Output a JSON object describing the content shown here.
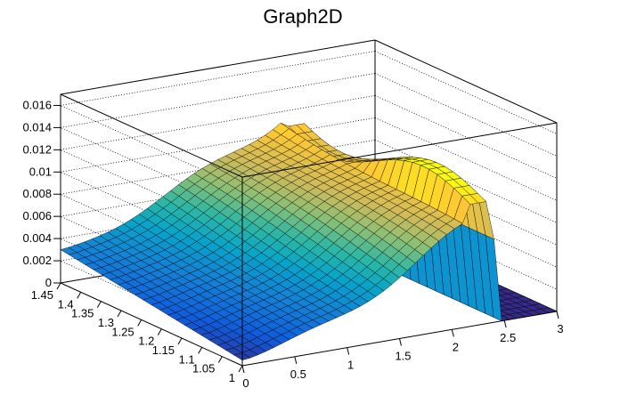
{
  "chart_data": {
    "type": "surface",
    "title": "Graph2D",
    "x_axis": {
      "range": [
        0,
        3
      ],
      "tick_labels": [
        "0",
        "0.5",
        "1",
        "1.5",
        "2",
        "2.5",
        "3"
      ]
    },
    "y_axis": {
      "range": [
        1.0,
        1.45
      ],
      "tick_labels": [
        "1",
        "1.05",
        "1.1",
        "1.15",
        "1.2",
        "1.25",
        "1.3",
        "1.35",
        "1.4",
        "1.45"
      ]
    },
    "z_axis": {
      "range": [
        0,
        0.017
      ],
      "tick_labels": [
        "0",
        "0.002",
        "0.004",
        "0.006",
        "0.008",
        "0.01",
        "0.012",
        "0.014",
        "0.016"
      ]
    },
    "grid": true,
    "palette": [
      "#352a87",
      "#0f5cdd",
      "#1481d6",
      "#06a4ca",
      "#2eb7a4",
      "#87bf77",
      "#d1bb59",
      "#fec832",
      "#f9fb0e"
    ],
    "surface_description_points": [
      {
        "x": 0.0,
        "y": 1.0,
        "z": 0.0005
      },
      {
        "x": 0.0,
        "y": 1.45,
        "z": 0.003
      },
      {
        "x": 1.0,
        "y": 1.0,
        "z": 0.006
      },
      {
        "x": 1.0,
        "y": 1.45,
        "z": 0.008
      },
      {
        "x": 1.6,
        "y": 1.2,
        "z": 0.012
      },
      {
        "x": 2.1,
        "y": 1.3,
        "z": 0.0115
      },
      {
        "x": 2.3,
        "y": 1.1,
        "z": 0.0105
      },
      {
        "x": 2.4,
        "y": 1.0,
        "z": 0.0005
      },
      {
        "x": 3.0,
        "y": 1.0,
        "z": 0.0
      },
      {
        "x": 3.0,
        "y": 1.45,
        "z": 0.0
      }
    ]
  }
}
